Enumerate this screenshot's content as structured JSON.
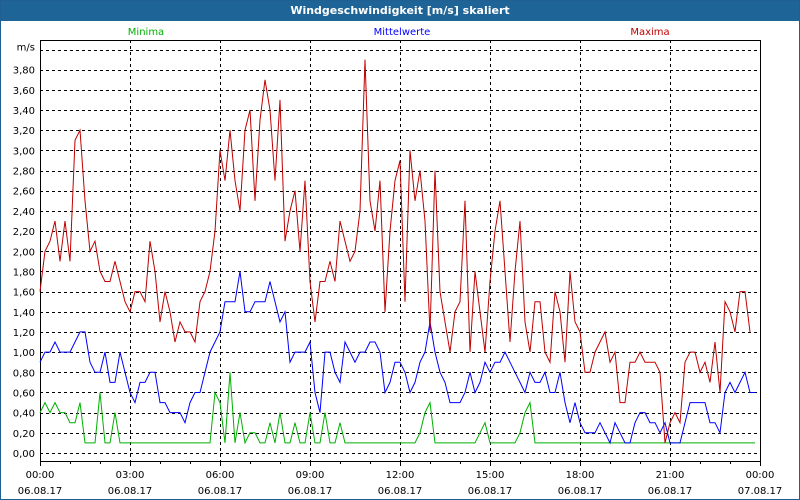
{
  "window": {
    "title": "Windgeschwindigkeit [m/s] skaliert"
  },
  "chart_data": {
    "type": "line",
    "title": "Windgeschwindigkeit [m/s] skaliert",
    "ylabel": "m/s",
    "ylim": [
      0,
      4.0
    ],
    "y_ticks": [
      "0,00",
      "0,20",
      "0,40",
      "0,60",
      "0,80",
      "1,00",
      "1,20",
      "1,40",
      "1,60",
      "1,80",
      "2,00",
      "2,20",
      "2,40",
      "2,60",
      "2,80",
      "3,00",
      "3,20",
      "3,40",
      "3,60",
      "3,80"
    ],
    "x_ticks": [
      {
        "time": "00:00",
        "date": "06.08.17"
      },
      {
        "time": "03:00",
        "date": "06.08.17"
      },
      {
        "time": "06:00",
        "date": "06.08.17"
      },
      {
        "time": "09:00",
        "date": "06.08.17"
      },
      {
        "time": "12:00",
        "date": "06.08.17"
      },
      {
        "time": "15:00",
        "date": "06.08.17"
      },
      {
        "time": "18:00",
        "date": "06.08.17"
      },
      {
        "time": "21:00",
        "date": "06.08.17"
      },
      {
        "time": "00:00",
        "date": "07.08.17"
      }
    ],
    "x_unit": "hours since 06.08.17 00:00, 10-minute steps",
    "xlim": [
      0,
      24
    ],
    "step_minutes": 10,
    "grid": true,
    "series": [
      {
        "name": "Minima",
        "color": "#00b000",
        "legend_position": "top-left",
        "values": [
          0.4,
          0.5,
          0.4,
          0.5,
          0.4,
          0.4,
          0.3,
          0.3,
          0.5,
          0.1,
          0.1,
          0.1,
          0.6,
          0.1,
          0.1,
          0.4,
          0.1,
          0.1,
          0.1,
          0.1,
          0.1,
          0.1,
          0.1,
          0.1,
          0.1,
          0.1,
          0.1,
          0.1,
          0.1,
          0.1,
          0.1,
          0.1,
          0.1,
          0.1,
          0.1,
          0.6,
          0.5,
          0.1,
          0.8,
          0.1,
          0.4,
          0.1,
          0.2,
          0.2,
          0.1,
          0.1,
          0.3,
          0.1,
          0.4,
          0.1,
          0.1,
          0.3,
          0.1,
          0.1,
          0.4,
          0.1,
          0.1,
          0.4,
          0.1,
          0.1,
          0.3,
          0.1,
          0.1,
          0.1,
          0.1,
          0.1,
          0.1,
          0.1,
          0.1,
          0.1,
          0.1,
          0.1,
          0.1,
          0.1,
          0.1,
          0.1,
          0.2,
          0.4,
          0.5,
          0.1,
          0.1,
          0.1,
          0.1,
          0.1,
          0.1,
          0.1,
          0.1,
          0.1,
          0.2,
          0.3,
          0.1,
          0.1,
          0.1,
          0.1,
          0.1,
          0.1,
          0.2,
          0.4,
          0.5,
          0.1,
          0.1,
          0.1,
          0.1,
          0.1,
          0.1,
          0.1,
          0.1,
          0.1,
          0.1,
          0.1,
          0.1,
          0.1,
          0.1,
          0.1,
          0.1,
          0.1,
          0.1,
          0.1,
          0.1,
          0.1,
          0.1,
          0.1,
          0.1,
          0.1,
          0.1,
          0.1,
          0.1,
          0.1,
          0.1,
          0.1,
          0.1,
          0.1,
          0.1,
          0.1,
          0.1,
          0.1,
          0.1,
          0.1,
          0.1,
          0.1,
          0.1,
          0.1,
          0.1,
          0.1
        ]
      },
      {
        "name": "Mittelwerte",
        "color": "#0000ff",
        "legend_position": "top-center",
        "values": [
          0.9,
          1.0,
          1.0,
          1.1,
          1.0,
          1.0,
          1.0,
          1.1,
          1.2,
          1.2,
          0.9,
          0.8,
          0.8,
          1.0,
          0.7,
          0.7,
          1.0,
          0.8,
          0.6,
          0.5,
          0.7,
          0.7,
          0.8,
          0.8,
          0.5,
          0.5,
          0.4,
          0.4,
          0.4,
          0.3,
          0.5,
          0.6,
          0.6,
          0.8,
          1.0,
          1.1,
          1.2,
          1.5,
          1.5,
          1.5,
          1.8,
          1.4,
          1.4,
          1.5,
          1.5,
          1.5,
          1.7,
          1.5,
          1.3,
          1.4,
          0.9,
          1.0,
          1.0,
          1.0,
          1.1,
          0.6,
          0.4,
          1.0,
          1.0,
          0.8,
          0.7,
          1.1,
          1.0,
          0.9,
          1.0,
          1.0,
          1.1,
          1.1,
          1.0,
          0.6,
          0.7,
          0.9,
          0.9,
          0.8,
          0.6,
          0.7,
          0.9,
          1.0,
          1.3,
          1.0,
          0.8,
          0.7,
          0.5,
          0.5,
          0.5,
          0.6,
          0.8,
          0.6,
          0.7,
          0.9,
          0.8,
          0.9,
          0.9,
          1.0,
          0.9,
          0.8,
          0.7,
          0.6,
          0.8,
          0.7,
          0.7,
          0.8,
          0.6,
          0.6,
          0.8,
          0.5,
          0.3,
          0.5,
          0.3,
          0.2,
          0.2,
          0.2,
          0.3,
          0.2,
          0.1,
          0.3,
          0.2,
          0.1,
          0.1,
          0.3,
          0.4,
          0.4,
          0.3,
          0.3,
          0.2,
          0.3,
          0.1,
          0.1,
          0.1,
          0.3,
          0.5,
          0.5,
          0.5,
          0.5,
          0.3,
          0.3,
          0.2,
          0.6,
          0.7,
          0.6,
          0.7,
          0.8,
          0.6,
          0.6
        ]
      },
      {
        "name": "Maxima",
        "color": "#c00000",
        "legend_position": "top-right",
        "values": [
          1.6,
          2.0,
          2.1,
          2.3,
          1.9,
          2.3,
          1.9,
          3.1,
          3.2,
          2.5,
          2.0,
          2.1,
          1.8,
          1.7,
          1.7,
          1.9,
          1.7,
          1.5,
          1.4,
          1.6,
          1.6,
          1.5,
          2.1,
          1.8,
          1.3,
          1.6,
          1.4,
          1.1,
          1.3,
          1.2,
          1.2,
          1.1,
          1.5,
          1.6,
          1.8,
          2.2,
          3.0,
          2.7,
          3.2,
          2.7,
          2.4,
          3.2,
          3.4,
          2.5,
          3.3,
          3.7,
          3.4,
          2.7,
          3.5,
          2.1,
          2.4,
          2.6,
          2.0,
          2.7,
          1.7,
          1.3,
          1.7,
          1.7,
          1.9,
          1.7,
          2.3,
          2.1,
          1.9,
          2.0,
          2.4,
          3.9,
          2.5,
          2.2,
          2.7,
          1.4,
          2.2,
          2.7,
          2.9,
          1.5,
          3.0,
          2.5,
          2.8,
          2.3,
          1.2,
          2.8,
          1.6,
          1.3,
          1.0,
          1.4,
          1.5,
          2.5,
          1.0,
          1.8,
          1.4,
          1.0,
          1.7,
          2.2,
          2.5,
          1.8,
          1.1,
          1.8,
          2.3,
          1.3,
          1.0,
          1.5,
          1.5,
          1.0,
          0.9,
          1.6,
          1.4,
          0.9,
          1.8,
          1.3,
          1.2,
          0.8,
          0.8,
          1.0,
          1.1,
          1.2,
          0.9,
          1.0,
          0.5,
          0.5,
          0.9,
          0.9,
          1.0,
          0.9,
          0.9,
          0.9,
          0.8,
          0.1,
          0.3,
          0.4,
          0.3,
          0.9,
          1.0,
          1.0,
          0.8,
          0.9,
          0.7,
          1.1,
          0.6,
          1.5,
          1.4,
          1.2,
          1.6,
          1.6,
          1.2
        ]
      }
    ]
  }
}
